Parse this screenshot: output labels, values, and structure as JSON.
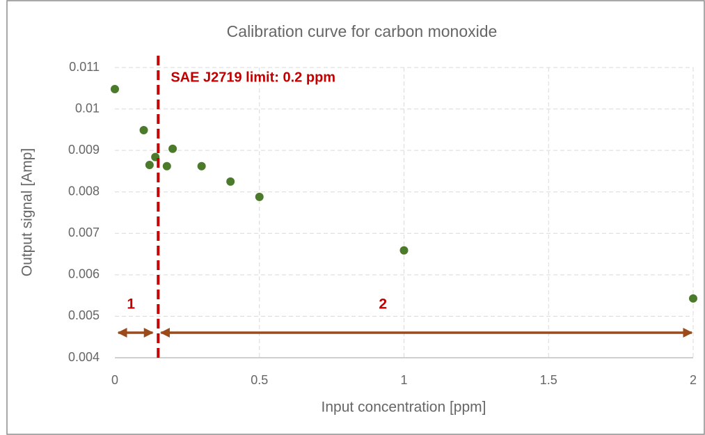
{
  "chart_data": {
    "type": "scatter",
    "title": "Calibration curve for carbon monoxide",
    "x_label": "Input concentration [ppm]",
    "y_label": "Output signal [Amp]",
    "x": [
      0,
      0.1,
      0.12,
      0.14,
      0.18,
      0.2,
      0.3,
      0.4,
      0.5,
      1,
      2
    ],
    "values": [
      0.01048,
      0.00949,
      0.00865,
      0.00884,
      0.00862,
      0.00904,
      0.00862,
      0.00825,
      0.00788,
      0.00659,
      0.00543
    ],
    "color": "#4a7a2a",
    "xlim": [
      0,
      2
    ],
    "ylim": [
      0.004,
      0.011
    ],
    "xticks": [
      0,
      0.5,
      1,
      1.5,
      2
    ],
    "yticks": [
      0.004,
      0.005,
      0.006,
      0.007,
      0.008,
      0.009,
      0.01,
      0.011
    ],
    "grid": true,
    "vline": 0.15,
    "vline_color": "#c00000",
    "arrow_color": "#9c4a1a",
    "annotations": {
      "limit_label": "SAE J2719 limit: 0.2 ppm",
      "region_1": "1",
      "region_2": "2"
    }
  }
}
